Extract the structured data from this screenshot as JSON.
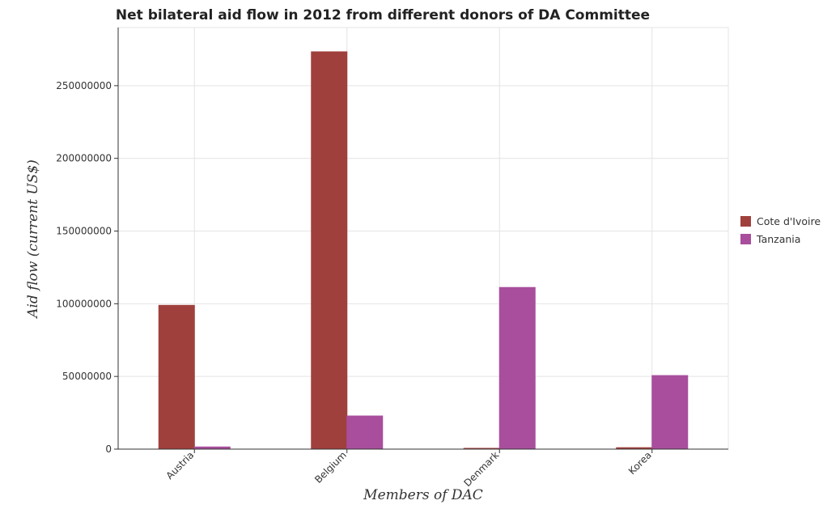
{
  "chart_data": {
    "type": "bar",
    "title": "Net bilateral aid flow in 2012 from different donors of DA Committee",
    "xlabel": "Members of DAC",
    "ylabel": "Aid flow (current US$)",
    "categories": [
      "Austria",
      "Belgium",
      "Denmark",
      "Korea"
    ],
    "series": [
      {
        "name": "Cote d'Ivoire",
        "color": "#a0403c",
        "values": [
          98900000,
          273300000,
          100000,
          1000000
        ]
      },
      {
        "name": "Tanzania",
        "color": "#a84e9c",
        "values": [
          1500000,
          22800000,
          111200000,
          50600000
        ]
      }
    ],
    "ylim": [
      0,
      290000000
    ],
    "yticks": [
      0,
      50000000,
      100000000,
      150000000,
      200000000,
      250000000
    ],
    "ytick_labels": [
      "0",
      "50000000",
      "100000000",
      "150000000",
      "200000000",
      "250000000"
    ],
    "grid": true,
    "legend_position": "right"
  }
}
